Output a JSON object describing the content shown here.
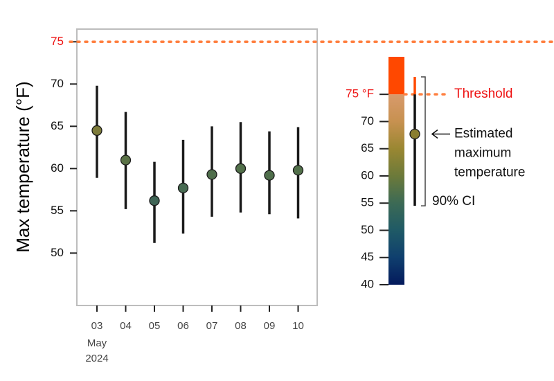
{
  "chart_data": {
    "type": "errorbar",
    "y_label": "Max temperature (°F)",
    "categories": [
      "03",
      "04",
      "05",
      "06",
      "07",
      "08",
      "09",
      "10"
    ],
    "x_month": "May",
    "x_year": "2024",
    "values": [
      64.5,
      61.0,
      56.2,
      57.7,
      59.3,
      60.0,
      59.2,
      59.8
    ],
    "lower": [
      58.9,
      55.2,
      51.2,
      52.3,
      54.3,
      54.8,
      54.6,
      54.1
    ],
    "upper": [
      69.8,
      66.7,
      60.8,
      63.4,
      65.0,
      65.5,
      64.4,
      64.9
    ],
    "colors": [
      "#7d7b3a",
      "#5a7246",
      "#3f6556",
      "#476b52",
      "#4f6e4b",
      "#52704a",
      "#4f6e4b",
      "#52704a"
    ],
    "ylim": [
      43.8,
      76.5
    ],
    "yticks": [
      50,
      55,
      60,
      65,
      70,
      75
    ],
    "threshold": 75,
    "threshold_color": "#ff7f3f",
    "legend": {
      "clim": [
        40,
        81.9
      ],
      "ticks": [
        40,
        45,
        50,
        55,
        60,
        65,
        70,
        {
          "value": 75,
          "label": "75 °F"
        }
      ],
      "colors": [
        "#041a5c",
        "#0f3f6e",
        "#1f5a66",
        "#3c6a55",
        "#6c7a3a",
        "#9a8732",
        "#c79150",
        "#d89a6c"
      ],
      "above_color": "#ff4800",
      "threshold_label": "Threshold",
      "estimate_label": [
        "Estimated",
        "maximum",
        "temperature"
      ],
      "ci_label": "90% CI",
      "example_value": 67.7,
      "example_color": "#8a7e30",
      "example_lower": 54.5,
      "example_upper": 78.2
    }
  }
}
